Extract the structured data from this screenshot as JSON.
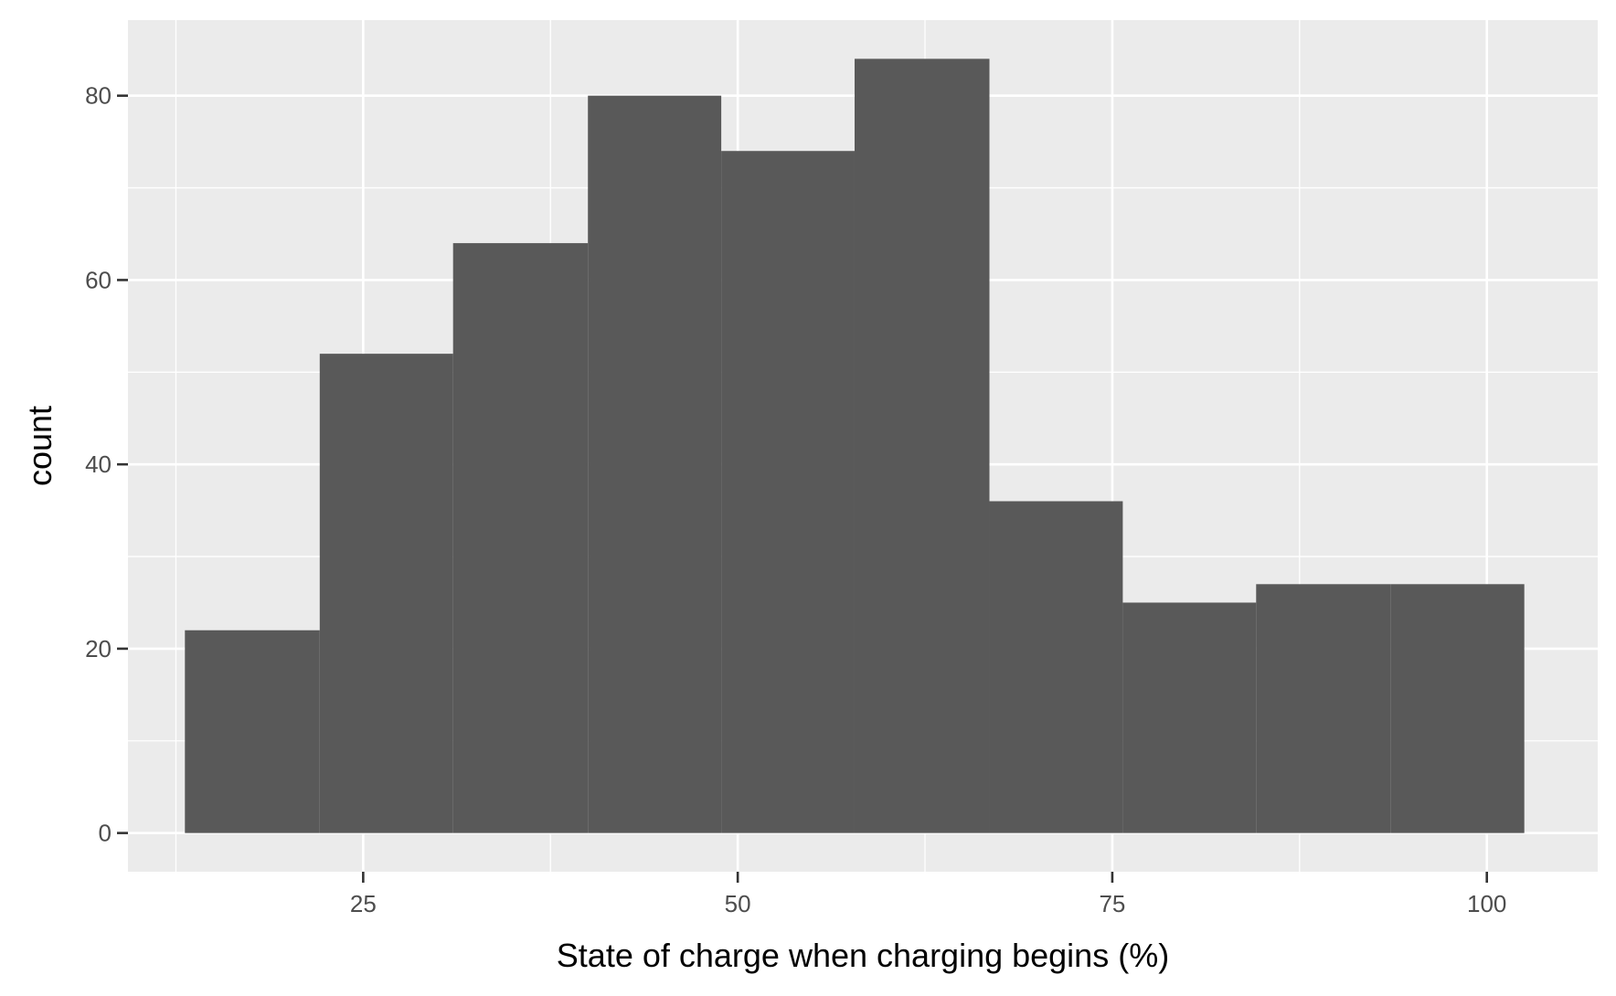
{
  "chart_data": {
    "type": "histogram",
    "xlabel": "State of charge when charging begins (%)",
    "ylabel": "count",
    "xlim": [
      9.3,
      107.4
    ],
    "ylim": [
      -4.2,
      88.2
    ],
    "x_ticks": [
      25,
      50,
      75,
      100
    ],
    "y_ticks": [
      0,
      20,
      40,
      60,
      80
    ],
    "bins": [
      {
        "x0": 13.1,
        "x1": 22.1,
        "count": 22
      },
      {
        "x0": 22.1,
        "x1": 31.0,
        "count": 52
      },
      {
        "x0": 31.0,
        "x1": 40.0,
        "count": 64
      },
      {
        "x0": 40.0,
        "x1": 48.9,
        "count": 80
      },
      {
        "x0": 48.9,
        "x1": 57.8,
        "count": 74
      },
      {
        "x0": 57.8,
        "x1": 66.8,
        "count": 84
      },
      {
        "x0": 66.8,
        "x1": 75.7,
        "count": 36
      },
      {
        "x0": 75.7,
        "x1": 84.6,
        "count": 25
      },
      {
        "x0": 84.6,
        "x1": 93.6,
        "count": 27
      },
      {
        "x0": 93.6,
        "x1": 102.5,
        "count": 27
      }
    ],
    "grid": true,
    "colors": {
      "panel_background": "#ebebeb",
      "grid_line": "#ffffff",
      "bar_fill": "#595959",
      "tick_text": "#4d4d4d",
      "axis_title": "#000000"
    }
  }
}
